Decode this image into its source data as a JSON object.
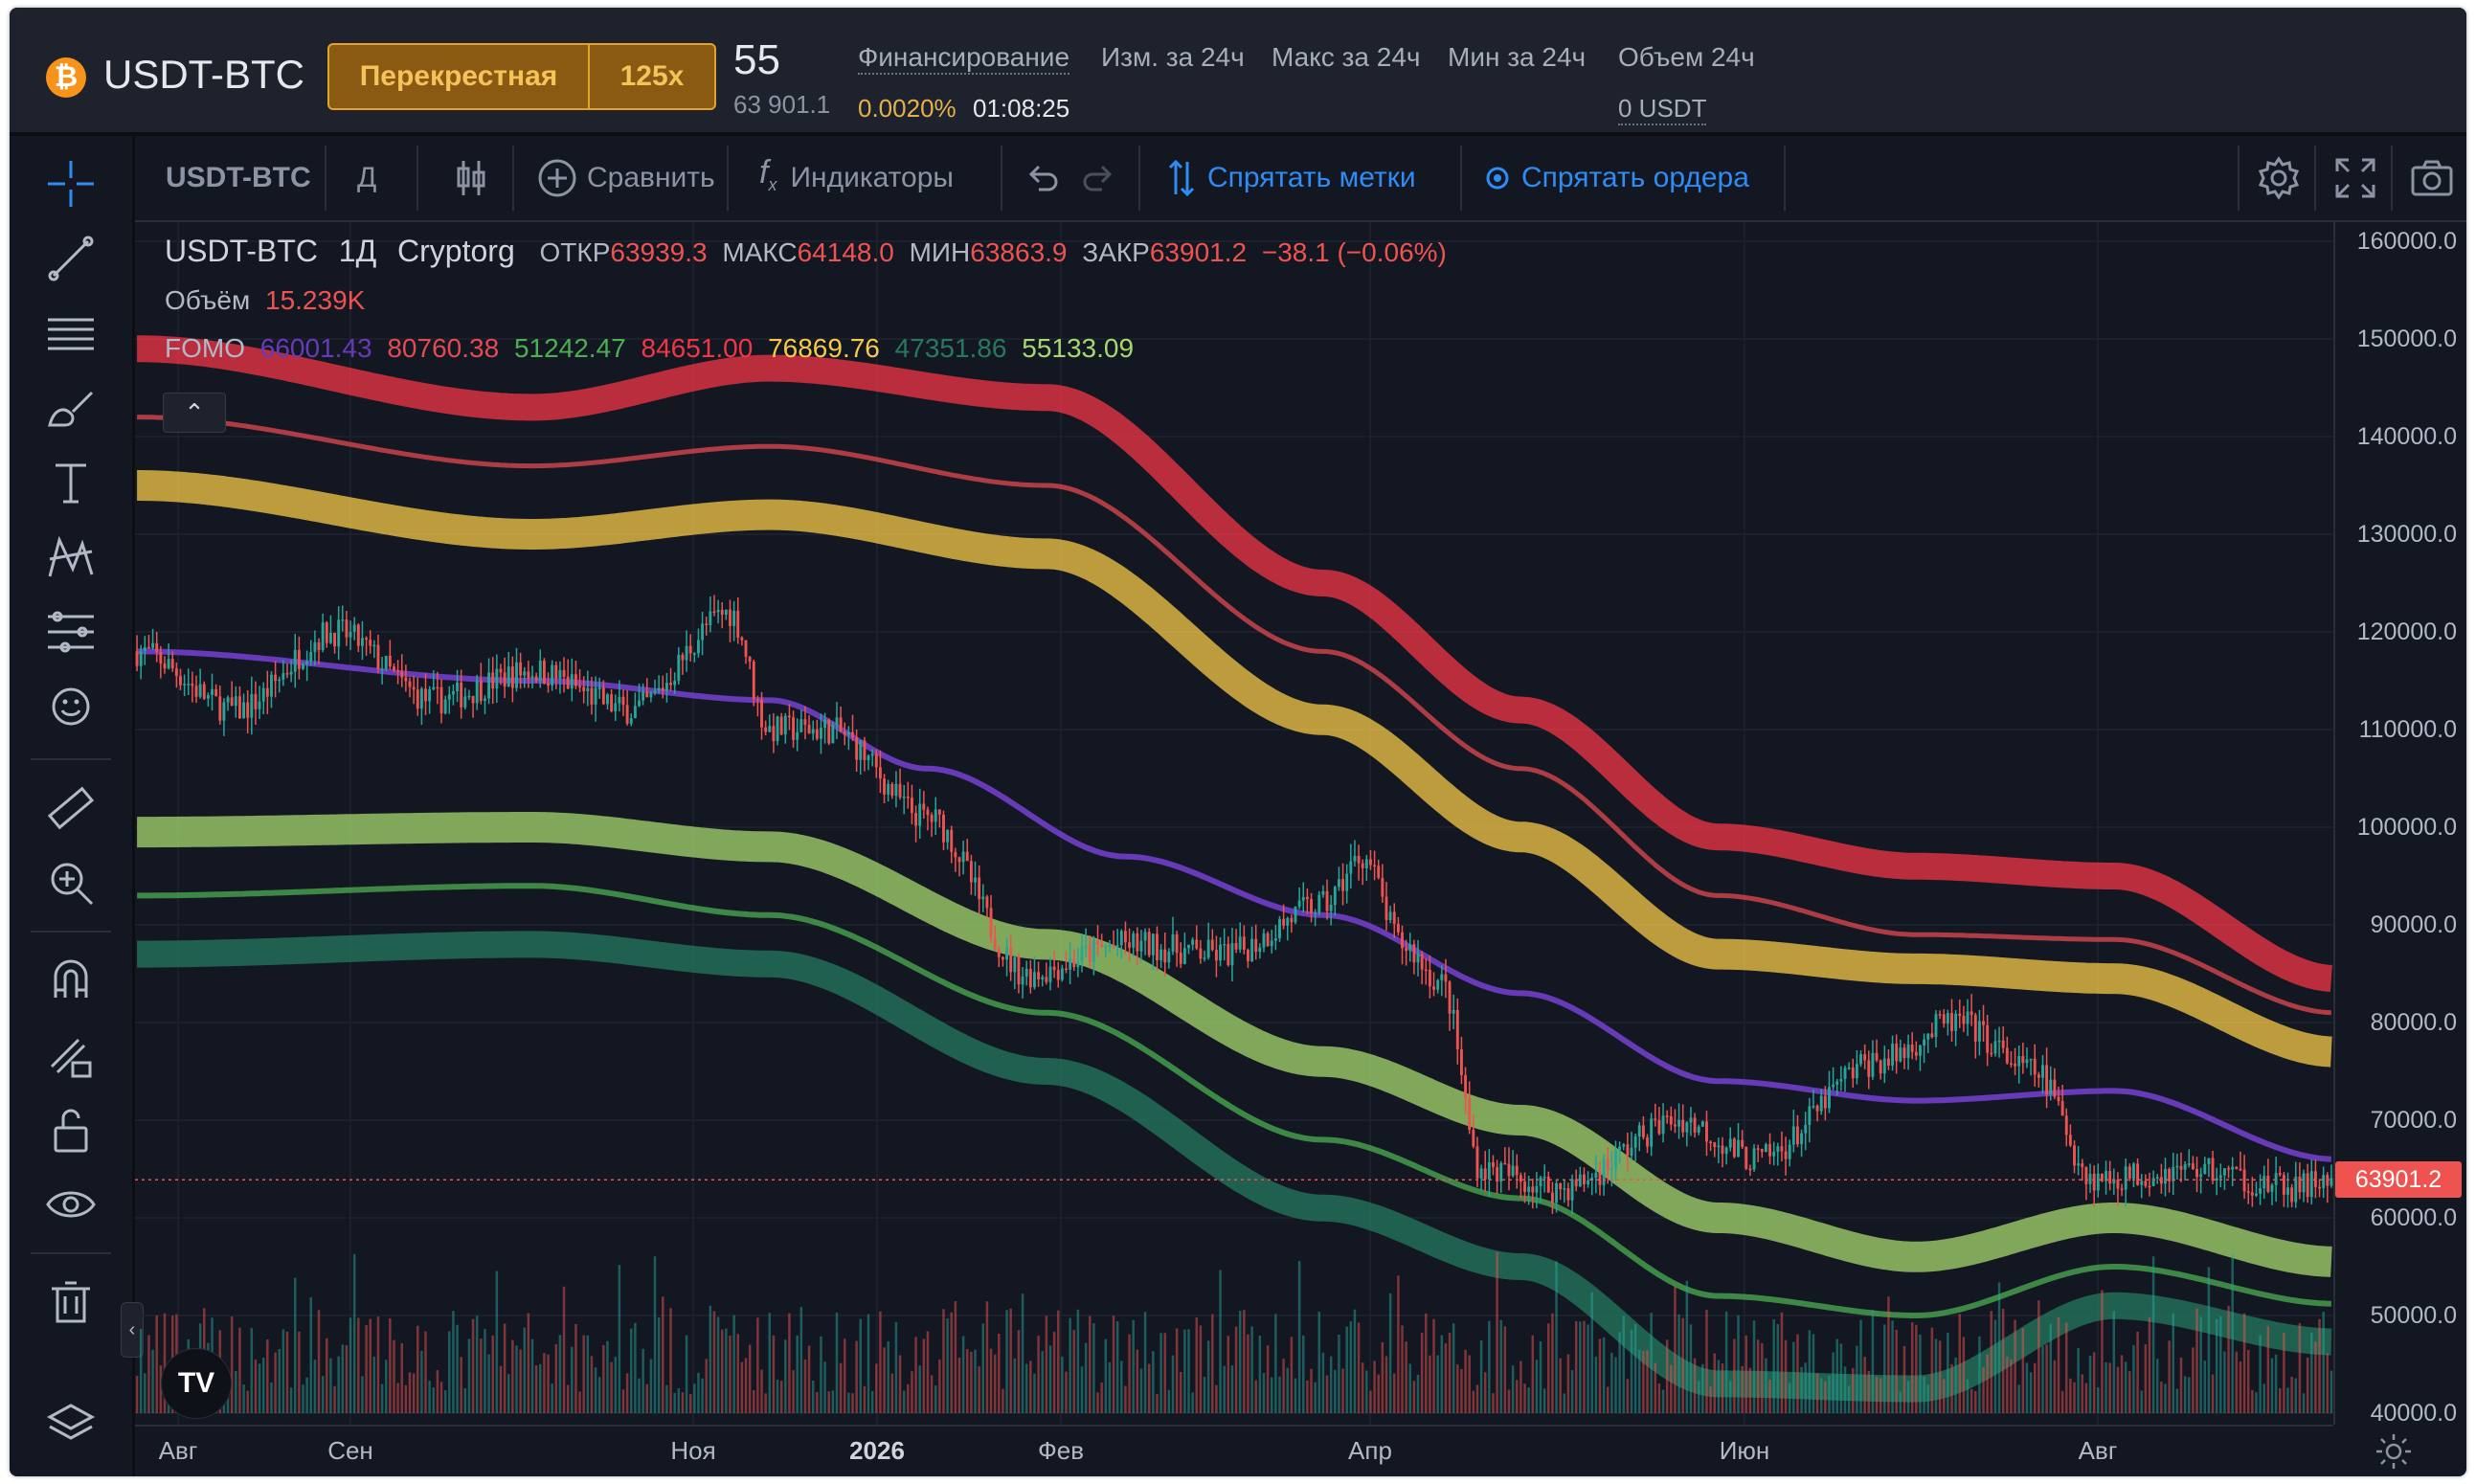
{
  "header": {
    "coin_icon": "bitcoin-icon",
    "pair": "USDT-BTC",
    "margin_mode": "Перекрестная",
    "leverage": "125x",
    "last_price": "55",
    "mark_price": "63 901.1",
    "funding_label": "Финансирование",
    "funding_rate": "0.0020%",
    "funding_countdown": "01:08:25",
    "change_label": "Изм. за 24ч",
    "high_label": "Макс за 24ч",
    "low_label": "Мин за 24ч",
    "volume_label": "Объем 24ч",
    "volume_value": "0 USDT"
  },
  "toolbar": {
    "symbol": "USDT-BTC",
    "interval": "Д",
    "compare": "Сравнить",
    "indicators": "Индикаторы",
    "hide_marks": "Спрятать метки",
    "hide_orders": "Спрятать ордера"
  },
  "legend": {
    "symbol": "USDT-BTC",
    "interval": "1Д",
    "exchange": "Cryptorg",
    "open_label": "ОТКР",
    "open": "63939.3",
    "high_label": "МАКС",
    "high": "64148.0",
    "low_label": "МИН",
    "low": "63863.9",
    "close_label": "ЗАКР",
    "close": "63901.2",
    "change": "−38.1 (−0.06%)",
    "volume_label": "Объём",
    "volume": "15.239K",
    "indicator_name": "FOMO",
    "indicator_values": [
      {
        "value": "66001.43",
        "color": "#673ab7"
      },
      {
        "value": "80760.38",
        "color": "#e34a52"
      },
      {
        "value": "51242.47",
        "color": "#4caf50"
      },
      {
        "value": "84651.00",
        "color": "#f23645"
      },
      {
        "value": "76869.76",
        "color": "#f7c948"
      },
      {
        "value": "47351.86",
        "color": "#26795f"
      },
      {
        "value": "55133.09",
        "color": "#a5d86e"
      }
    ],
    "collapse_icon": "chevron-up-icon"
  },
  "price_axis": {
    "labels": [
      "160000.0",
      "150000.0",
      "140000.0",
      "130000.0",
      "120000.0",
      "110000.0",
      "100000.0",
      "90000.0",
      "80000.0",
      "70000.0",
      "60000.0",
      "50000.0",
      "40000.0"
    ],
    "current_price": "63901.2"
  },
  "time_axis": {
    "labels": [
      "Авг",
      "Сен",
      "Ноя",
      "2026",
      "Фев",
      "Апр",
      "Июн",
      "Авг"
    ]
  },
  "colors": {
    "background": "#131722",
    "up": "#26a69a",
    "down": "#ef5350",
    "accent": "#2f8cf5",
    "gold": "#e0a42a"
  },
  "chart_data": {
    "type": "candlestick",
    "symbol": "USDT-BTC",
    "interval": "1Д",
    "ylim": [
      35000,
      163000
    ],
    "x": [
      "Авг",
      "Сен",
      "Ноя",
      "2026",
      "Фев",
      "Апр",
      "Июн",
      "Авг"
    ],
    "close_path_knots": [
      [
        0,
        118000
      ],
      [
        25,
        112000
      ],
      [
        50,
        120000
      ],
      [
        75,
        113000
      ],
      [
        100,
        116000
      ],
      [
        125,
        112000
      ],
      [
        150,
        122000
      ],
      [
        160,
        110000
      ],
      [
        175,
        110000
      ],
      [
        200,
        101000
      ],
      [
        225,
        85000
      ],
      [
        250,
        88000
      ],
      [
        275,
        87000
      ],
      [
        300,
        92000
      ],
      [
        310,
        97000
      ],
      [
        320,
        88000
      ],
      [
        330,
        84000
      ],
      [
        340,
        65000
      ],
      [
        360,
        63000
      ],
      [
        390,
        70000
      ],
      [
        410,
        66000
      ],
      [
        440,
        76000
      ],
      [
        460,
        80000
      ],
      [
        480,
        75000
      ],
      [
        495,
        64000
      ],
      [
        520,
        65000
      ],
      [
        545,
        63000
      ],
      [
        556,
        64000
      ]
    ],
    "series": [
      {
        "name": "FOMO",
        "value": 66001.43,
        "color": "#673ab7",
        "knots": [
          [
            0,
            118000
          ],
          [
            100,
            115000
          ],
          [
            160,
            113000
          ],
          [
            200,
            106000
          ],
          [
            250,
            97000
          ],
          [
            300,
            91000
          ],
          [
            350,
            83000
          ],
          [
            400,
            74000
          ],
          [
            450,
            72000
          ],
          [
            500,
            73000
          ],
          [
            556,
            66000
          ]
        ]
      },
      {
        "name": "",
        "value": 80760.38,
        "color": "#e34a52",
        "knots": [
          [
            0,
            142000
          ],
          [
            100,
            137000
          ],
          [
            160,
            139000
          ],
          [
            230,
            135000
          ],
          [
            300,
            118000
          ],
          [
            350,
            106000
          ],
          [
            400,
            93000
          ],
          [
            450,
            89000
          ],
          [
            500,
            88500
          ],
          [
            556,
            81000
          ]
        ]
      },
      {
        "name": "",
        "value": 84651.0,
        "color": "#f23645",
        "knots": [
          [
            0,
            149000
          ],
          [
            100,
            143000
          ],
          [
            160,
            147000
          ],
          [
            230,
            144000
          ],
          [
            300,
            125000
          ],
          [
            350,
            112000
          ],
          [
            400,
            99000
          ],
          [
            450,
            96000
          ],
          [
            500,
            95000
          ],
          [
            556,
            84500
          ]
        ]
      },
      {
        "name": "",
        "value": 76869.76,
        "color": "#f7c948",
        "knots": [
          [
            0,
            135000
          ],
          [
            100,
            130000
          ],
          [
            160,
            132000
          ],
          [
            230,
            128000
          ],
          [
            300,
            111000
          ],
          [
            350,
            99000
          ],
          [
            400,
            87000
          ],
          [
            450,
            85500
          ],
          [
            500,
            84500
          ],
          [
            556,
            77000
          ]
        ]
      },
      {
        "name": "",
        "value": 55133.09,
        "color": "#a5d86e",
        "knots": [
          [
            0,
            99500
          ],
          [
            100,
            100000
          ],
          [
            160,
            98000
          ],
          [
            230,
            88000
          ],
          [
            300,
            76000
          ],
          [
            350,
            70000
          ],
          [
            400,
            60000
          ],
          [
            450,
            56000
          ],
          [
            500,
            60000
          ],
          [
            556,
            55500
          ]
        ]
      },
      {
        "name": "",
        "value": 51242.47,
        "color": "#4caf50",
        "knots": [
          [
            0,
            93000
          ],
          [
            100,
            94000
          ],
          [
            160,
            91000
          ],
          [
            230,
            81000
          ],
          [
            300,
            68000
          ],
          [
            350,
            62000
          ],
          [
            400,
            52000
          ],
          [
            450,
            50000
          ],
          [
            500,
            55000
          ],
          [
            556,
            51200
          ]
        ]
      },
      {
        "name": "",
        "value": 47351.86,
        "color": "#26795f",
        "knots": [
          [
            0,
            87000
          ],
          [
            100,
            88000
          ],
          [
            160,
            86000
          ],
          [
            230,
            75000
          ],
          [
            300,
            61000
          ],
          [
            350,
            55000
          ],
          [
            400,
            43000
          ],
          [
            450,
            42500
          ],
          [
            500,
            51000
          ],
          [
            556,
            47300
          ]
        ]
      }
    ]
  }
}
